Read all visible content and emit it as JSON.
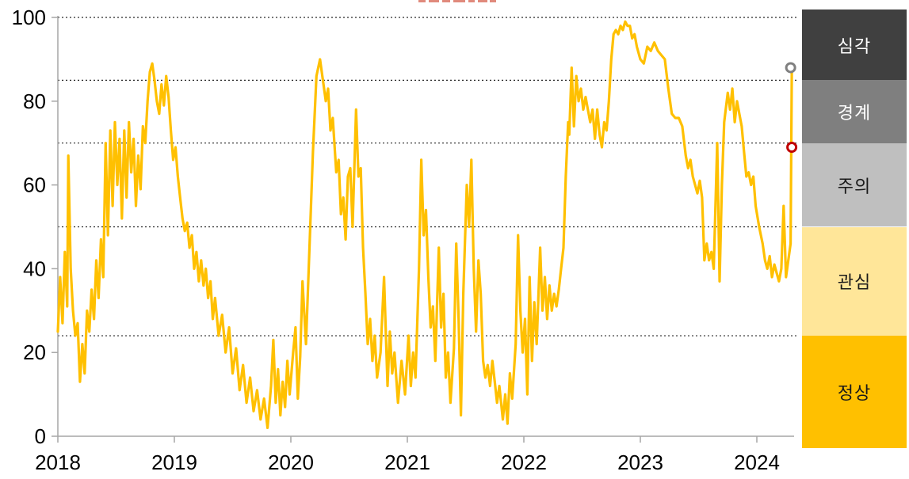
{
  "chart_data": {
    "type": "line",
    "title": "",
    "line_color": "#FFC000",
    "axis_color": "#A6A6A6",
    "gridline_color": "#262626",
    "label_color": "#000000",
    "x_axis": {
      "labels": [
        "2018",
        "2019",
        "2020",
        "2021",
        "2022",
        "2023",
        "2024"
      ],
      "ticks": [
        2018,
        2019,
        2020,
        2021,
        2022,
        2023,
        2024
      ]
    },
    "y_axis": {
      "ticks": [
        0,
        20,
        40,
        60,
        80,
        100
      ],
      "range": [
        0,
        100
      ]
    },
    "gridline_values": [
      100,
      85,
      70,
      50,
      24
    ],
    "legend_position": "right",
    "grid": "horizontal-dotted",
    "bands": [
      {
        "key": "severe",
        "label": "심각",
        "range": [
          85,
          100
        ],
        "color": "#404040",
        "text_color": "#FFFFFF"
      },
      {
        "key": "alert",
        "label": "경계",
        "range": [
          70,
          85
        ],
        "color": "#7F7F7F",
        "text_color": "#FFFFFF"
      },
      {
        "key": "caution",
        "label": "주의",
        "range": [
          50,
          70
        ],
        "color": "#BFBFBF",
        "text_color": "#1A1A1A"
      },
      {
        "key": "attention",
        "label": "관심",
        "range": [
          24,
          50
        ],
        "color": "#FFE699",
        "text_color": "#1A1A1A"
      },
      {
        "key": "normal",
        "label": "정상",
        "range": [
          0,
          24
        ],
        "color": "#FFC000",
        "text_color": "#1A1A1A"
      }
    ],
    "markers": [
      {
        "name": "end-marker-gray",
        "x": 2024.29,
        "y": 88,
        "color": "#808080"
      },
      {
        "name": "end-marker-red",
        "x": 2024.3,
        "y": 69,
        "color": "#C00000"
      }
    ],
    "x": [
      2018.0,
      2018.02,
      2018.04,
      2018.06,
      2018.08,
      2018.09,
      2018.11,
      2018.13,
      2018.15,
      2018.17,
      2018.19,
      2018.21,
      2018.23,
      2018.25,
      2018.27,
      2018.29,
      2018.31,
      2018.33,
      2018.35,
      2018.37,
      2018.39,
      2018.41,
      2018.43,
      2018.45,
      2018.47,
      2018.49,
      2018.51,
      2018.53,
      2018.55,
      2018.57,
      2018.59,
      2018.61,
      2018.63,
      2018.65,
      2018.67,
      2018.69,
      2018.71,
      2018.73,
      2018.75,
      2018.77,
      2018.79,
      2018.81,
      2018.83,
      2018.85,
      2018.87,
      2018.89,
      2018.91,
      2018.93,
      2018.95,
      2018.97,
      2018.99,
      2019.01,
      2019.03,
      2019.05,
      2019.07,
      2019.09,
      2019.11,
      2019.13,
      2019.15,
      2019.17,
      2019.19,
      2019.21,
      2019.23,
      2019.25,
      2019.27,
      2019.29,
      2019.31,
      2019.33,
      2019.35,
      2019.38,
      2019.41,
      2019.44,
      2019.47,
      2019.5,
      2019.53,
      2019.56,
      2019.59,
      2019.62,
      2019.65,
      2019.68,
      2019.71,
      2019.74,
      2019.77,
      2019.8,
      2019.83,
      2019.85,
      2019.87,
      2019.89,
      2019.91,
      2019.93,
      2019.95,
      2019.97,
      2019.99,
      2020.02,
      2020.04,
      2020.06,
      2020.08,
      2020.1,
      2020.13,
      2020.16,
      2020.19,
      2020.22,
      2020.25,
      2020.28,
      2020.3,
      2020.32,
      2020.34,
      2020.36,
      2020.39,
      2020.41,
      2020.43,
      2020.45,
      2020.47,
      2020.49,
      2020.51,
      2020.53,
      2020.56,
      2020.58,
      2020.6,
      2020.62,
      2020.64,
      2020.66,
      2020.68,
      2020.7,
      2020.72,
      2020.74,
      2020.77,
      2020.8,
      2020.83,
      2020.85,
      2020.87,
      2020.89,
      2020.92,
      2020.95,
      2020.98,
      2021.01,
      2021.03,
      2021.05,
      2021.07,
      2021.1,
      2021.12,
      2021.14,
      2021.16,
      2021.18,
      2021.2,
      2021.22,
      2021.24,
      2021.27,
      2021.29,
      2021.31,
      2021.33,
      2021.35,
      2021.37,
      2021.4,
      2021.42,
      2021.44,
      2021.46,
      2021.48,
      2021.51,
      2021.53,
      2021.55,
      2021.57,
      2021.59,
      2021.61,
      2021.63,
      2021.65,
      2021.67,
      2021.69,
      2021.71,
      2021.73,
      2021.75,
      2021.77,
      2021.79,
      2021.82,
      2021.84,
      2021.86,
      2021.88,
      2021.9,
      2021.93,
      2021.95,
      2021.97,
      2021.99,
      2022.01,
      2022.03,
      2022.05,
      2022.07,
      2022.09,
      2022.11,
      2022.14,
      2022.16,
      2022.18,
      2022.2,
      2022.22,
      2022.24,
      2022.26,
      2022.28,
      2022.3,
      2022.32,
      2022.34,
      2022.36,
      2022.38,
      2022.39,
      2022.41,
      2022.43,
      2022.45,
      2022.47,
      2022.49,
      2022.51,
      2022.53,
      2022.55,
      2022.57,
      2022.59,
      2022.61,
      2022.63,
      2022.65,
      2022.67,
      2022.69,
      2022.71,
      2022.73,
      2022.75,
      2022.77,
      2022.79,
      2022.81,
      2022.83,
      2022.85,
      2022.87,
      2022.89,
      2022.91,
      2022.93,
      2022.95,
      2022.97,
      2023.0,
      2023.03,
      2023.06,
      2023.09,
      2023.12,
      2023.15,
      2023.18,
      2023.21,
      2023.24,
      2023.27,
      2023.3,
      2023.33,
      2023.36,
      2023.39,
      2023.41,
      2023.43,
      2023.45,
      2023.47,
      2023.49,
      2023.51,
      2023.53,
      2023.55,
      2023.57,
      2023.59,
      2023.61,
      2023.63,
      2023.66,
      2023.68,
      2023.7,
      2023.72,
      2023.75,
      2023.77,
      2023.79,
      2023.81,
      2023.83,
      2023.85,
      2023.87,
      2023.89,
      2023.91,
      2023.93,
      2023.95,
      2023.97,
      2023.99,
      2024.02,
      2024.05,
      2024.07,
      2024.09,
      2024.11,
      2024.13,
      2024.15,
      2024.17,
      2024.19,
      2024.21,
      2024.23,
      2024.25,
      2024.27,
      2024.29,
      2024.3
    ],
    "y": [
      25,
      38,
      27,
      44,
      31,
      67,
      40,
      30,
      24,
      27,
      13,
      22,
      15,
      30,
      25,
      35,
      28,
      42,
      33,
      47,
      38,
      70,
      48,
      73,
      55,
      75,
      60,
      71,
      52,
      73,
      57,
      75,
      63,
      71,
      55,
      67,
      59,
      74,
      70,
      80,
      87,
      89,
      85,
      80,
      77,
      84,
      79,
      86,
      81,
      73,
      66,
      69,
      62,
      57,
      52,
      49,
      51,
      45,
      48,
      40,
      44,
      37,
      42,
      36,
      40,
      33,
      37,
      28,
      33,
      24,
      29,
      20,
      26,
      15,
      21,
      11,
      17,
      8,
      14,
      6,
      11,
      4,
      9,
      2,
      12,
      23,
      8,
      16,
      5,
      13,
      7,
      18,
      10,
      20,
      26,
      9,
      19,
      37,
      22,
      45,
      68,
      86,
      90,
      84,
      80,
      83,
      73,
      76,
      63,
      66,
      53,
      57,
      47,
      62,
      64,
      50,
      78,
      62,
      64,
      45,
      34,
      22,
      28,
      18,
      24,
      14,
      20,
      38,
      12,
      25,
      15,
      20,
      8,
      18,
      10,
      24,
      12,
      20,
      14,
      40,
      66,
      48,
      54,
      38,
      26,
      31,
      18,
      45,
      26,
      34,
      14,
      20,
      8,
      21,
      46,
      28,
      5,
      34,
      60,
      50,
      66,
      40,
      25,
      42,
      34,
      18,
      14,
      17,
      12,
      18,
      13,
      8,
      12,
      4,
      10,
      3,
      15,
      9,
      22,
      48,
      30,
      20,
      28,
      10,
      38,
      18,
      32,
      22,
      45,
      30,
      38,
      28,
      36,
      30,
      34,
      31,
      35,
      40,
      45,
      62,
      75,
      72,
      88,
      74,
      86,
      80,
      83,
      78,
      81,
      78,
      75,
      78,
      71,
      78,
      72,
      69,
      75,
      73,
      80,
      90,
      96,
      97,
      96,
      98,
      97,
      99,
      98,
      98,
      95,
      96,
      93,
      90,
      89,
      93,
      92,
      94,
      92,
      91,
      90,
      83,
      77,
      76,
      76,
      74,
      67,
      64,
      66,
      62,
      60,
      58,
      61,
      57,
      42,
      46,
      42,
      44,
      40,
      70,
      37,
      60,
      75,
      82,
      78,
      83,
      75,
      80,
      77,
      74,
      68,
      62,
      63,
      60,
      62,
      55,
      50,
      46,
      42,
      40,
      43,
      38,
      41,
      39,
      37,
      40,
      55,
      38,
      42,
      46,
      87
    ]
  }
}
